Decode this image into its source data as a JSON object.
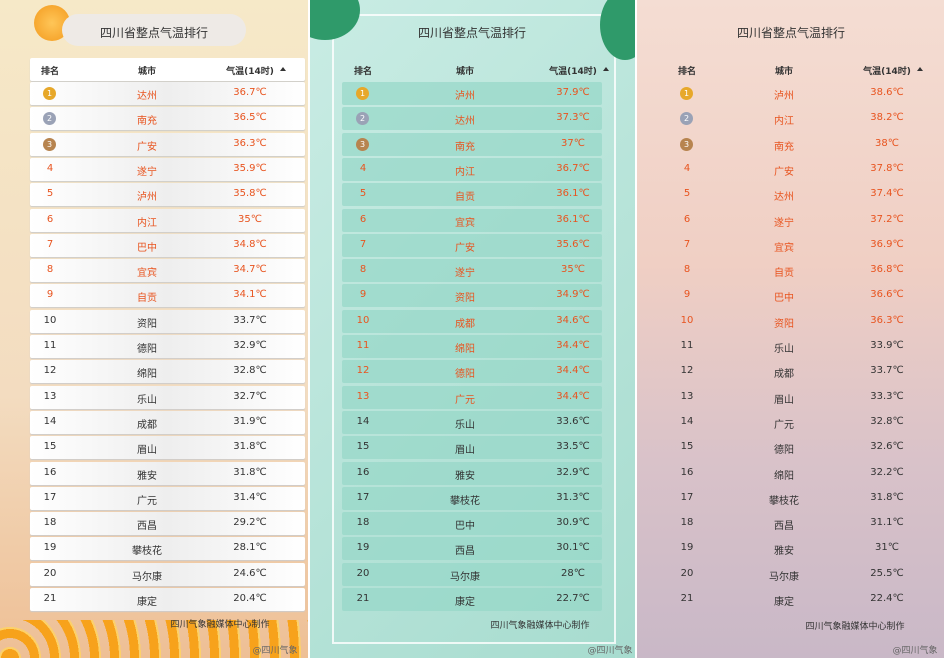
{
  "panels": [
    {
      "title": "四川省整点气温排行",
      "headers": [
        "排名",
        "城市",
        "气温(14时)"
      ],
      "footer": "四川气象融媒体中心制作",
      "watermark": "@四川气象",
      "rows": [
        [
          "1",
          "达州",
          "36.7℃"
        ],
        [
          "2",
          "南充",
          "36.5℃"
        ],
        [
          "3",
          "广安",
          "36.3℃"
        ],
        [
          "4",
          "遂宁",
          "35.9℃"
        ],
        [
          "5",
          "泸州",
          "35.8℃"
        ],
        [
          "6",
          "内江",
          "35℃"
        ],
        [
          "7",
          "巴中",
          "34.8℃"
        ],
        [
          "8",
          "宜宾",
          "34.7℃"
        ],
        [
          "9",
          "自贡",
          "34.1℃"
        ],
        [
          "10",
          "资阳",
          "33.7℃"
        ],
        [
          "11",
          "德阳",
          "32.9℃"
        ],
        [
          "12",
          "绵阳",
          "32.8℃"
        ],
        [
          "13",
          "乐山",
          "32.7℃"
        ],
        [
          "14",
          "成都",
          "31.9℃"
        ],
        [
          "15",
          "眉山",
          "31.8℃"
        ],
        [
          "16",
          "雅安",
          "31.8℃"
        ],
        [
          "17",
          "广元",
          "31.4℃"
        ],
        [
          "18",
          "西昌",
          "29.2℃"
        ],
        [
          "19",
          "攀枝花",
          "28.1℃"
        ],
        [
          "20",
          "马尔康",
          "24.6℃"
        ],
        [
          "21",
          "康定",
          "20.4℃"
        ]
      ]
    },
    {
      "title": "四川省整点气温排行",
      "headers": [
        "排名",
        "城市",
        "气温(14时)"
      ],
      "footer": "四川气象融媒体中心制作",
      "watermark": "@四川气象",
      "rows": [
        [
          "1",
          "泸州",
          "37.9℃"
        ],
        [
          "2",
          "达州",
          "37.3℃"
        ],
        [
          "3",
          "南充",
          "37℃"
        ],
        [
          "4",
          "内江",
          "36.7℃"
        ],
        [
          "5",
          "自贡",
          "36.1℃"
        ],
        [
          "6",
          "宜宾",
          "36.1℃"
        ],
        [
          "7",
          "广安",
          "35.6℃"
        ],
        [
          "8",
          "遂宁",
          "35℃"
        ],
        [
          "9",
          "资阳",
          "34.9℃"
        ],
        [
          "10",
          "成都",
          "34.6℃"
        ],
        [
          "11",
          "绵阳",
          "34.4℃"
        ],
        [
          "12",
          "德阳",
          "34.4℃"
        ],
        [
          "13",
          "广元",
          "34.4℃"
        ],
        [
          "14",
          "乐山",
          "33.6℃"
        ],
        [
          "15",
          "眉山",
          "33.5℃"
        ],
        [
          "16",
          "雅安",
          "32.9℃"
        ],
        [
          "17",
          "攀枝花",
          "31.3℃"
        ],
        [
          "18",
          "巴中",
          "30.9℃"
        ],
        [
          "19",
          "西昌",
          "30.1℃"
        ],
        [
          "20",
          "马尔康",
          "28℃"
        ],
        [
          "21",
          "康定",
          "22.7℃"
        ]
      ]
    },
    {
      "title": "四川省整点气温排行",
      "headers": [
        "排名",
        "城市",
        "气温(14时)"
      ],
      "footer": "四川气象融媒体中心制作",
      "watermark": "@四川气象",
      "rows": [
        [
          "1",
          "泸州",
          "38.6℃"
        ],
        [
          "2",
          "内江",
          "38.2℃"
        ],
        [
          "3",
          "南充",
          "38℃"
        ],
        [
          "4",
          "广安",
          "37.8℃"
        ],
        [
          "5",
          "达州",
          "37.4℃"
        ],
        [
          "6",
          "遂宁",
          "37.2℃"
        ],
        [
          "7",
          "宜宾",
          "36.9℃"
        ],
        [
          "8",
          "自贡",
          "36.8℃"
        ],
        [
          "9",
          "巴中",
          "36.6℃"
        ],
        [
          "10",
          "资阳",
          "36.3℃"
        ],
        [
          "11",
          "乐山",
          "33.9℃"
        ],
        [
          "12",
          "成都",
          "33.7℃"
        ],
        [
          "13",
          "眉山",
          "33.3℃"
        ],
        [
          "14",
          "广元",
          "32.8℃"
        ],
        [
          "15",
          "德阳",
          "32.6℃"
        ],
        [
          "16",
          "绵阳",
          "32.2℃"
        ],
        [
          "17",
          "攀枝花",
          "31.8℃"
        ],
        [
          "18",
          "西昌",
          "31.1℃"
        ],
        [
          "19",
          "雅安",
          "31℃"
        ],
        [
          "20",
          "马尔康",
          "25.5℃"
        ],
        [
          "21",
          "康定",
          "22.4℃"
        ]
      ]
    }
  ]
}
